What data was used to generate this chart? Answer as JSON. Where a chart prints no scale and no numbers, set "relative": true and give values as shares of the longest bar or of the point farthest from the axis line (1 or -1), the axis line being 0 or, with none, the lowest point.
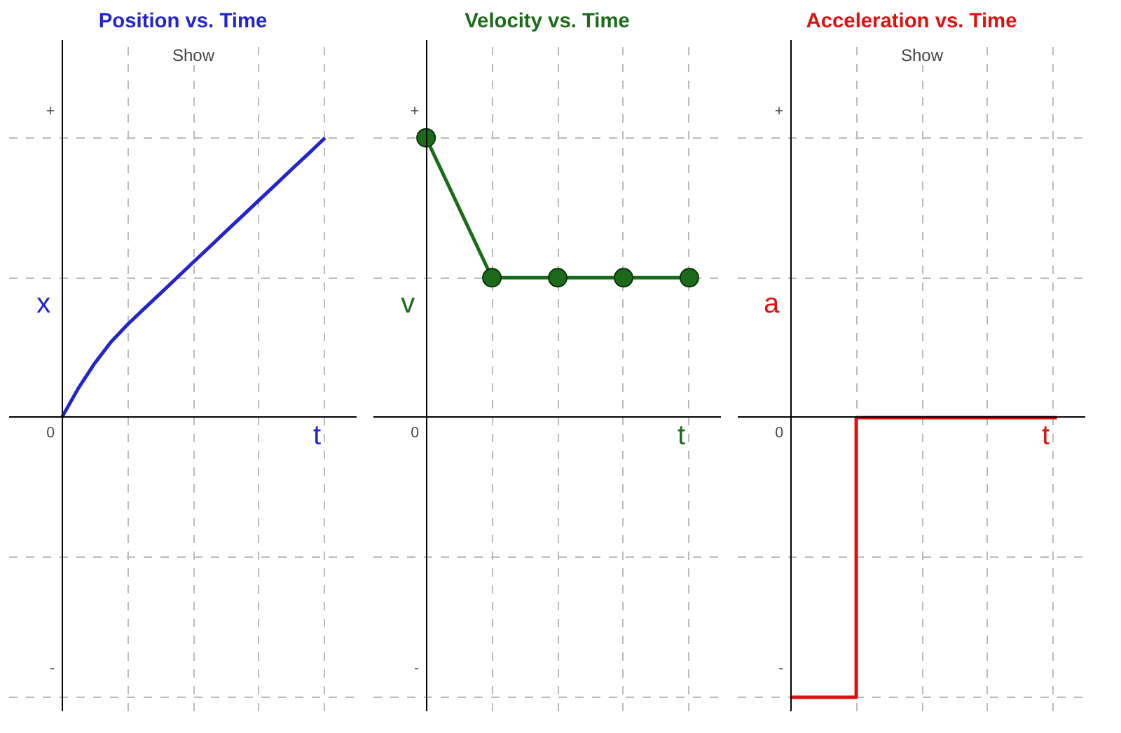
{
  "chart_data": [
    {
      "type": "line",
      "title": "Position vs. Time",
      "xlabel": "t",
      "ylabel": "x",
      "relative": true,
      "grid": true,
      "marker": "none",
      "line_style": "solid",
      "annotations": [
        "Show",
        "+",
        "0",
        "-"
      ],
      "categories": [
        null,
        null,
        null,
        null,
        null,
        null,
        null,
        null,
        null,
        null,
        null,
        null,
        null,
        null,
        null,
        null,
        null
      ],
      "series": [
        {
          "color": "#2424cc",
          "values": [
            0,
            0.104,
            0.194,
            0.271,
            0.333,
            0.389,
            0.444,
            0.5,
            0.556,
            0.611,
            0.667,
            0.722,
            0.778,
            0.833,
            0.889,
            0.944,
            1
          ]
        }
      ]
    },
    {
      "type": "line",
      "title": "Velocity vs. Time",
      "xlabel": "t",
      "ylabel": "v",
      "relative": true,
      "grid": true,
      "marker": "circle",
      "line_style": "solid",
      "annotations": [
        "+",
        "0",
        "-"
      ],
      "categories": [
        null,
        null,
        null,
        null,
        null
      ],
      "series": [
        {
          "color": "#1b6b1b",
          "values": [
            1,
            0.5,
            0.5,
            0.5,
            0.5
          ]
        }
      ]
    },
    {
      "type": "step",
      "title": "Acceleration vs. Time",
      "xlabel": "t",
      "ylabel": "a",
      "relative": true,
      "grid": true,
      "marker": "none",
      "line_style": "solid",
      "annotations": [
        "Show",
        "+",
        "0",
        "-"
      ],
      "categories": [
        null,
        null,
        null,
        null,
        null
      ],
      "series": [
        {
          "color": "#e01010",
          "values": [
            -1,
            0,
            0,
            0,
            0
          ]
        }
      ]
    }
  ]
}
